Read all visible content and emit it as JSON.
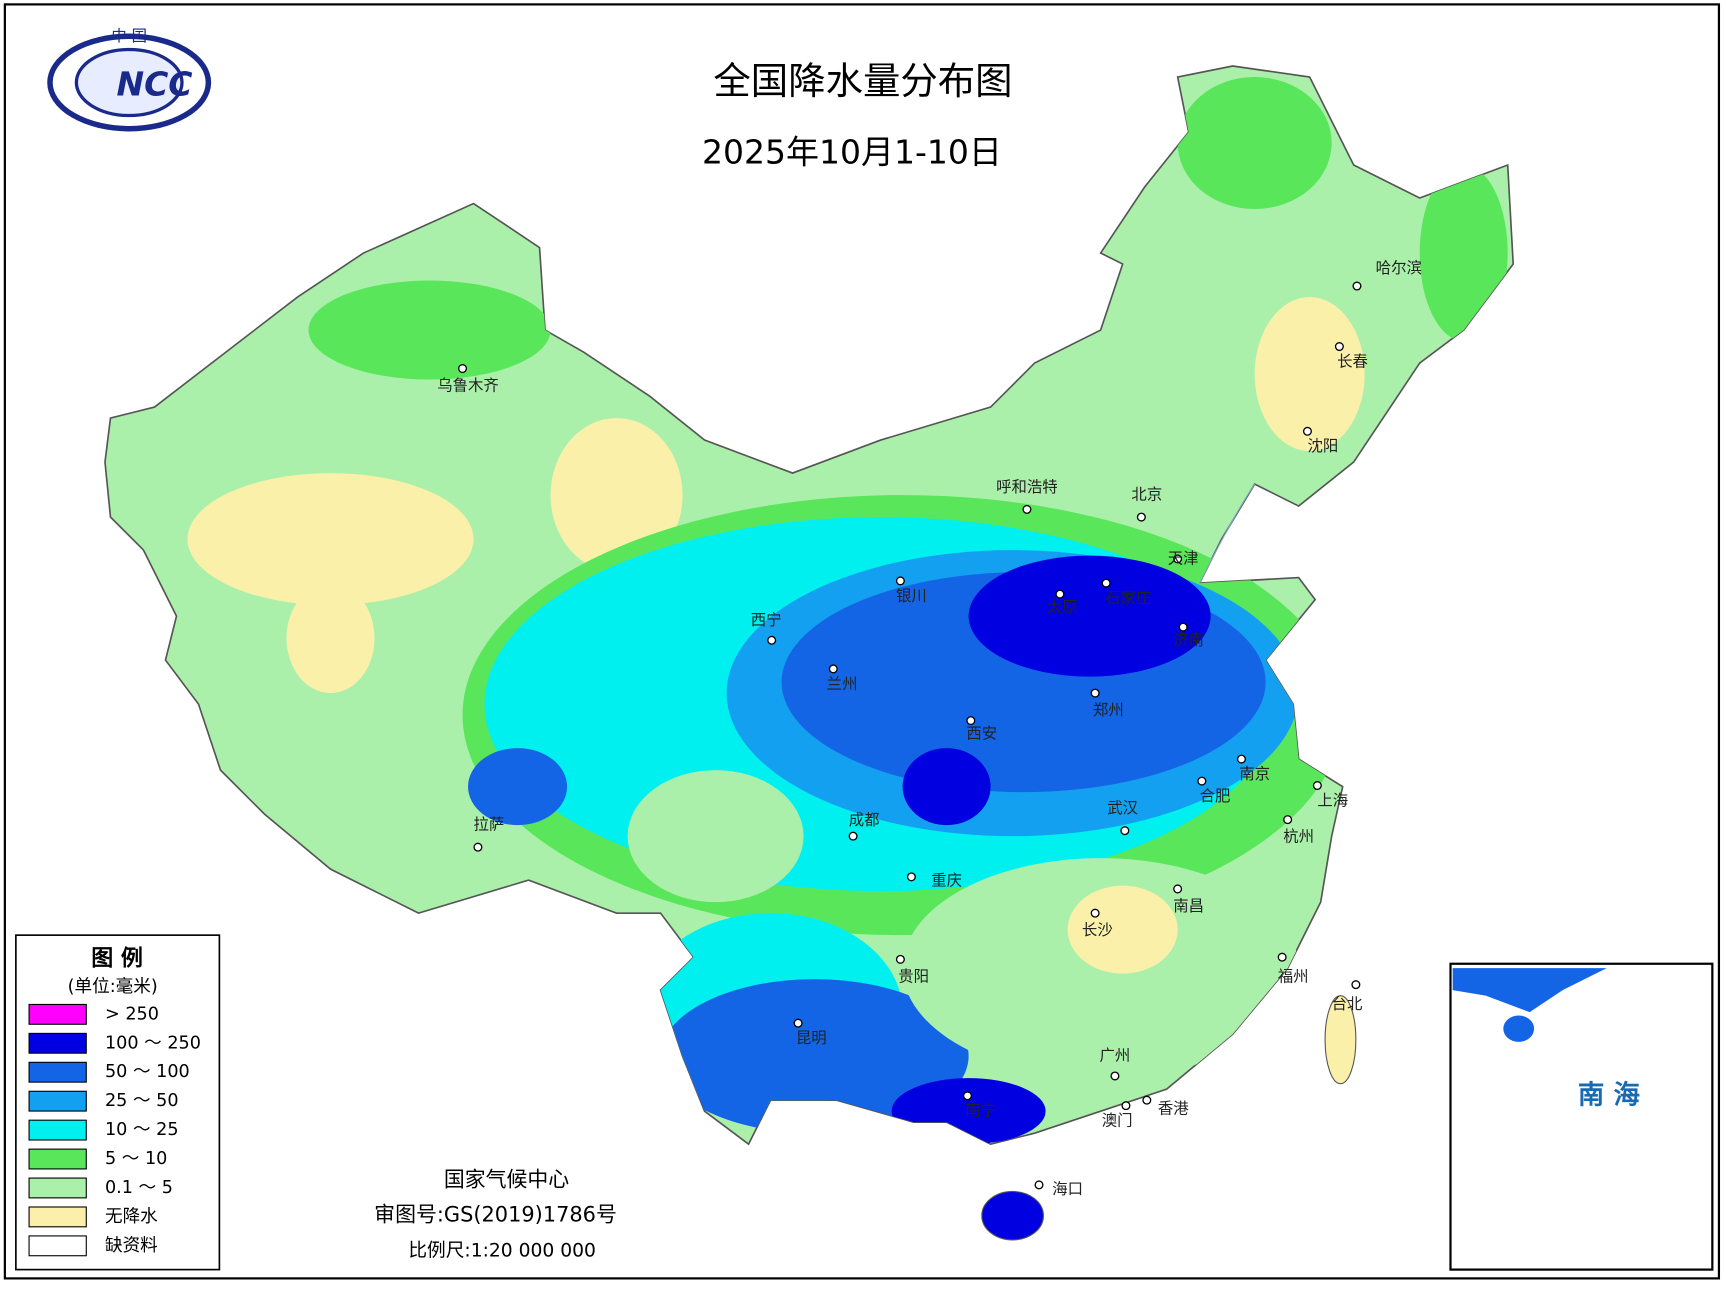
{
  "header": {
    "title": "全国降水量分布图",
    "subtitle": "2025年10月1-10日",
    "logo_top": "中 国",
    "logo_text": "NCC"
  },
  "legend": {
    "title": "图 例",
    "unit": "(单位:毫米)",
    "items": [
      {
        "label": "> 250",
        "color": "#ff00ff"
      },
      {
        "label": "100 ～ 250",
        "color": "#0000e0"
      },
      {
        "label": "50 ～ 100",
        "color": "#1464e6"
      },
      {
        "label": "25 ～ 50",
        "color": "#14a0f0"
      },
      {
        "label": "10 ～ 25",
        "color": "#00f0f0"
      },
      {
        "label": "5 ～ 10",
        "color": "#5ae65a"
      },
      {
        "label": "0.1 ～ 5",
        "color": "#aaf0aa"
      },
      {
        "label": "无降水",
        "color": "#faf0aa"
      },
      {
        "label": "缺资料",
        "color": "#ffffff"
      }
    ]
  },
  "cities": [
    "乌鲁木齐",
    "拉萨",
    "西宁",
    "兰州",
    "银川",
    "呼和浩特",
    "北京",
    "天津",
    "石家庄",
    "太原",
    "济南",
    "郑州",
    "西安",
    "成都",
    "重庆",
    "武汉",
    "合肥",
    "南京",
    "上海",
    "杭州",
    "南昌",
    "长沙",
    "贵阳",
    "昆明",
    "南宁",
    "广州",
    "香港",
    "澳门",
    "海口",
    "福州",
    "台北",
    "哈尔滨",
    "长春",
    "沈阳"
  ],
  "footer": {
    "agency": "国家气候中心",
    "approval": "审图号:GS(2019)1786号",
    "scale": "比例尺:1:20 000 000"
  },
  "inset": {
    "label": "南 海"
  }
}
